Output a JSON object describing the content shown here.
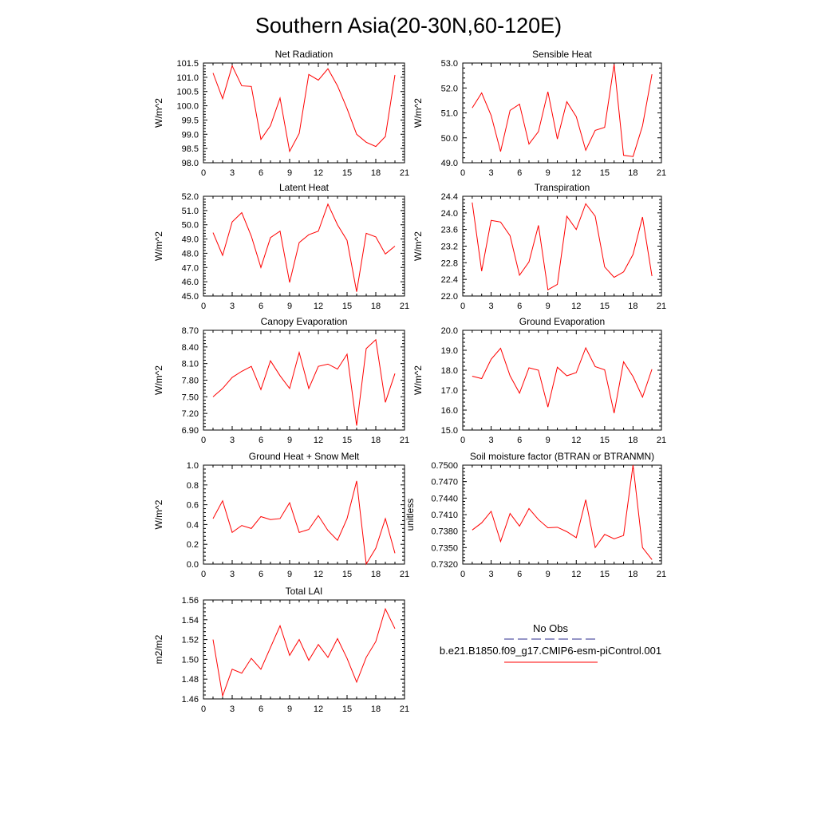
{
  "figure": {
    "title": "Southern Asia(20-30N,60-120E)",
    "legend": {
      "obs_label": "No Obs",
      "model_label": "b.e21.B1850.f09_g17.CMIP6-esm-piControl.001",
      "obs_color": "#2b2b8c",
      "model_color": "#ff0000"
    }
  },
  "chart_data": [
    {
      "type": "line",
      "title": "Net Radiation",
      "xlabel": "",
      "ylabel": "W/m^2",
      "xlim": [
        0,
        21
      ],
      "ylim": [
        98.0,
        101.5
      ],
      "xticks": [
        "0",
        "3",
        "6",
        "9",
        "12",
        "15",
        "18",
        "21"
      ],
      "yticks": [
        "98.0",
        "98.5",
        "99.0",
        "99.5",
        "100.0",
        "100.5",
        "101.0",
        "101.5"
      ],
      "x": [
        1,
        2,
        3,
        4,
        5,
        6,
        7,
        8,
        9,
        10,
        11,
        12,
        13,
        14,
        15,
        16,
        17,
        18,
        19,
        20
      ],
      "series": [
        {
          "color": "#ff0000",
          "values": [
            101.15,
            100.25,
            101.4,
            100.7,
            100.68,
            98.82,
            99.3,
            100.27,
            98.4,
            99.03,
            101.1,
            100.9,
            101.3,
            100.7,
            99.9,
            99.0,
            98.72,
            98.57,
            98.92,
            101.08
          ]
        }
      ]
    },
    {
      "type": "line",
      "title": "Sensible Heat",
      "xlabel": "",
      "ylabel": "W/m^2",
      "xlim": [
        0,
        21
      ],
      "ylim": [
        49.0,
        53.0
      ],
      "xticks": [
        "0",
        "3",
        "6",
        "9",
        "12",
        "15",
        "18",
        "21"
      ],
      "yticks": [
        "49.0",
        "50.0",
        "51.0",
        "52.0",
        "53.0"
      ],
      "x": [
        1,
        2,
        3,
        4,
        5,
        6,
        7,
        8,
        9,
        10,
        11,
        12,
        13,
        14,
        15,
        16,
        17,
        18,
        19,
        20
      ],
      "series": [
        {
          "color": "#ff0000",
          "values": [
            51.2,
            51.8,
            50.9,
            49.45,
            51.1,
            51.35,
            49.75,
            50.25,
            51.85,
            49.95,
            51.45,
            50.85,
            49.5,
            50.3,
            50.42,
            52.95,
            49.3,
            49.25,
            50.48,
            52.55
          ]
        }
      ]
    },
    {
      "type": "line",
      "title": "Latent Heat",
      "xlabel": "",
      "ylabel": "W/m^2",
      "xlim": [
        0,
        21
      ],
      "ylim": [
        45.0,
        52.0
      ],
      "xticks": [
        "0",
        "3",
        "6",
        "9",
        "12",
        "15",
        "18",
        "21"
      ],
      "yticks": [
        "45.0",
        "46.0",
        "47.0",
        "48.0",
        "49.0",
        "50.0",
        "51.0",
        "52.0"
      ],
      "x": [
        1,
        2,
        3,
        4,
        5,
        6,
        7,
        8,
        9,
        10,
        11,
        12,
        13,
        14,
        15,
        16,
        17,
        18,
        19,
        20
      ],
      "series": [
        {
          "color": "#ff0000",
          "values": [
            49.45,
            47.85,
            50.2,
            50.85,
            49.2,
            47.0,
            49.1,
            49.55,
            45.95,
            48.75,
            49.3,
            49.55,
            51.45,
            50.0,
            48.9,
            45.3,
            49.4,
            49.15,
            47.95,
            48.5
          ]
        }
      ]
    },
    {
      "type": "line",
      "title": "Transpiration",
      "xlabel": "",
      "ylabel": "W/m^2",
      "xlim": [
        0,
        21
      ],
      "ylim": [
        22.0,
        24.4
      ],
      "xticks": [
        "0",
        "3",
        "6",
        "9",
        "12",
        "15",
        "18",
        "21"
      ],
      "yticks": [
        "22.0",
        "22.4",
        "22.8",
        "23.2",
        "23.6",
        "24.0",
        "24.4"
      ],
      "x": [
        1,
        2,
        3,
        4,
        5,
        6,
        7,
        8,
        9,
        10,
        11,
        12,
        13,
        14,
        15,
        16,
        17,
        18,
        19,
        20
      ],
      "series": [
        {
          "color": "#ff0000",
          "values": [
            24.25,
            22.6,
            23.82,
            23.78,
            23.45,
            22.5,
            22.82,
            23.7,
            22.15,
            22.28,
            23.92,
            23.6,
            24.22,
            23.92,
            22.7,
            22.45,
            22.58,
            23.0,
            23.9,
            22.48
          ]
        }
      ]
    },
    {
      "type": "line",
      "title": "Canopy Evaporation",
      "xlabel": "",
      "ylabel": "W/m^2",
      "xlim": [
        0,
        21
      ],
      "ylim": [
        6.9,
        8.7
      ],
      "xticks": [
        "0",
        "3",
        "6",
        "9",
        "12",
        "15",
        "18",
        "21"
      ],
      "yticks": [
        "6.90",
        "7.20",
        "7.50",
        "7.80",
        "8.10",
        "8.40",
        "8.70"
      ],
      "x": [
        1,
        2,
        3,
        4,
        5,
        6,
        7,
        8,
        9,
        10,
        11,
        12,
        13,
        14,
        15,
        16,
        17,
        18,
        19,
        20
      ],
      "series": [
        {
          "color": "#ff0000",
          "values": [
            7.5,
            7.65,
            7.85,
            7.96,
            8.05,
            7.63,
            8.15,
            7.88,
            7.65,
            8.3,
            7.65,
            8.05,
            8.09,
            8.0,
            8.27,
            6.98,
            8.37,
            8.53,
            7.4,
            7.92
          ]
        }
      ]
    },
    {
      "type": "line",
      "title": "Ground Evaporation",
      "xlabel": "",
      "ylabel": "W/m^2",
      "xlim": [
        0,
        21
      ],
      "ylim": [
        15.0,
        20.0
      ],
      "xticks": [
        "0",
        "3",
        "6",
        "9",
        "12",
        "15",
        "18",
        "21"
      ],
      "yticks": [
        "15.0",
        "16.0",
        "17.0",
        "18.0",
        "19.0",
        "20.0"
      ],
      "x": [
        1,
        2,
        3,
        4,
        5,
        6,
        7,
        8,
        9,
        10,
        11,
        12,
        13,
        14,
        15,
        16,
        17,
        18,
        19,
        20
      ],
      "series": [
        {
          "color": "#ff0000",
          "values": [
            17.7,
            17.58,
            18.55,
            19.1,
            17.72,
            16.85,
            18.12,
            18.0,
            16.15,
            18.15,
            17.72,
            17.88,
            19.12,
            18.18,
            18.02,
            15.85,
            18.42,
            17.68,
            16.65,
            18.05
          ]
        }
      ]
    },
    {
      "type": "line",
      "title": "Ground Heat + Snow Melt",
      "xlabel": "",
      "ylabel": "W/m^2",
      "xlim": [
        0,
        21
      ],
      "ylim": [
        0.0,
        1.0
      ],
      "xticks": [
        "0",
        "3",
        "6",
        "9",
        "12",
        "15",
        "18",
        "21"
      ],
      "yticks": [
        "0.0",
        "0.2",
        "0.4",
        "0.6",
        "0.8",
        "1.0"
      ],
      "x": [
        1,
        2,
        3,
        4,
        5,
        6,
        7,
        8,
        9,
        10,
        11,
        12,
        13,
        14,
        15,
        16,
        17,
        18,
        19,
        20
      ],
      "series": [
        {
          "color": "#ff0000",
          "values": [
            0.46,
            0.64,
            0.32,
            0.39,
            0.36,
            0.48,
            0.45,
            0.46,
            0.62,
            0.32,
            0.35,
            0.49,
            0.34,
            0.24,
            0.46,
            0.84,
            0.0,
            0.16,
            0.46,
            0.11
          ]
        }
      ]
    },
    {
      "type": "line",
      "title": "Soil moisture factor (BTRAN or BTRANMN)",
      "xlabel": "",
      "ylabel": "unitless",
      "xlim": [
        0,
        21
      ],
      "ylim": [
        0.732,
        0.75
      ],
      "xticks": [
        "0",
        "3",
        "6",
        "9",
        "12",
        "15",
        "18",
        "21"
      ],
      "yticks": [
        "0.7320",
        "0.7350",
        "0.7380",
        "0.7410",
        "0.7440",
        "0.7470",
        "0.7500"
      ],
      "x": [
        1,
        2,
        3,
        4,
        5,
        6,
        7,
        8,
        9,
        10,
        11,
        12,
        13,
        14,
        15,
        16,
        17,
        18,
        19,
        20
      ],
      "series": [
        {
          "color": "#ff0000",
          "values": [
            0.7382,
            0.7395,
            0.7416,
            0.7361,
            0.7412,
            0.7389,
            0.7421,
            0.7401,
            0.7386,
            0.7387,
            0.7379,
            0.7368,
            0.7437,
            0.735,
            0.7374,
            0.7366,
            0.7372,
            0.75,
            0.735,
            0.7328
          ]
        }
      ]
    },
    {
      "type": "line",
      "title": "Total LAI",
      "xlabel": "",
      "ylabel": "m2/m2",
      "xlim": [
        0,
        21
      ],
      "ylim": [
        1.46,
        1.56
      ],
      "xticks": [
        "0",
        "3",
        "6",
        "9",
        "12",
        "15",
        "18",
        "21"
      ],
      "yticks": [
        "1.46",
        "1.48",
        "1.50",
        "1.52",
        "1.54",
        "1.56"
      ],
      "x": [
        1,
        2,
        3,
        4,
        5,
        6,
        7,
        8,
        9,
        10,
        11,
        12,
        13,
        14,
        15,
        16,
        17,
        18,
        19,
        20
      ],
      "series": [
        {
          "color": "#ff0000",
          "values": [
            1.52,
            1.463,
            1.49,
            1.486,
            1.501,
            1.49,
            1.512,
            1.534,
            1.504,
            1.52,
            1.499,
            1.515,
            1.502,
            1.521,
            1.501,
            1.477,
            1.502,
            1.518,
            1.551,
            1.531
          ]
        }
      ]
    }
  ]
}
